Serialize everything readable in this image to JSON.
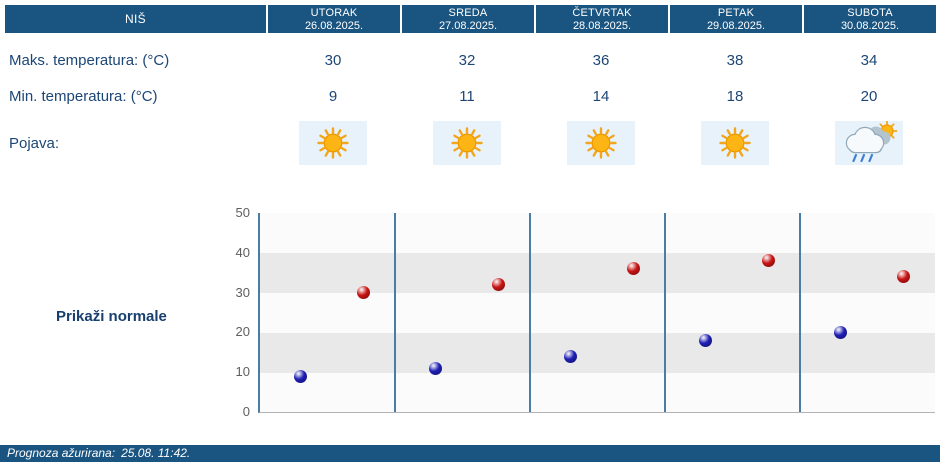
{
  "colors": {
    "header_bg": "#1a5480",
    "table_text": "#1c4675",
    "icon_cell_bg": "#e8f2fa",
    "separator_line": "#4a7ca8",
    "max_dot": "#c81414",
    "min_dot": "#1e1eb4"
  },
  "header": {
    "city": "NIŠ",
    "days": [
      {
        "name": "UTORAK",
        "date": "26.08.2025."
      },
      {
        "name": "SREDA",
        "date": "27.08.2025."
      },
      {
        "name": "ČETVRTAK",
        "date": "28.08.2025."
      },
      {
        "name": "PETAK",
        "date": "29.08.2025."
      },
      {
        "name": "SUBOTA",
        "date": "30.08.2025."
      }
    ]
  },
  "table": {
    "max_label": "Maks. temperatura: (°C)",
    "max_values": [
      30,
      32,
      36,
      38,
      34
    ],
    "min_label": "Min. temperatura: (°C)",
    "min_values": [
      9,
      11,
      14,
      18,
      20
    ],
    "pojava_label": "Pojava:",
    "icons": [
      "sun",
      "sun",
      "sun",
      "sun",
      "sun-clouds-rain"
    ]
  },
  "controls": {
    "show_normals_label": "Prikaži normale"
  },
  "chart_data": {
    "type": "scatter",
    "categories": [
      "26.08.2025.",
      "27.08.2025.",
      "28.08.2025.",
      "29.08.2025.",
      "30.08.2025."
    ],
    "series": [
      {
        "name": "Maks. temperatura (°C)",
        "color": "#c81414",
        "values": [
          30,
          32,
          36,
          38,
          34
        ]
      },
      {
        "name": "Min. temperatura (°C)",
        "color": "#1e1eb4",
        "values": [
          9,
          11,
          14,
          18,
          20
        ]
      }
    ],
    "ylim": [
      0,
      50
    ],
    "yticks": [
      0,
      10,
      20,
      30,
      40,
      50
    ],
    "grid": "horizontal-bands",
    "legend": "none"
  },
  "footer": {
    "label": "Prognoza ažurirana:",
    "timestamp": "25.08. 11:42."
  }
}
